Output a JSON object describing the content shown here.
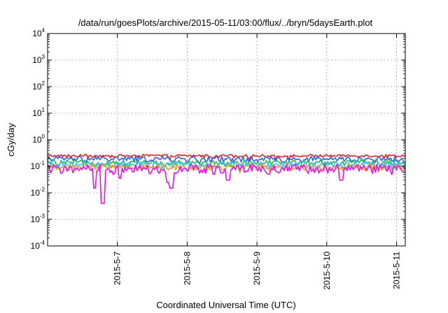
{
  "chart_data": {
    "type": "line",
    "title": "/data/run/goesPlots/archive/2015-05-11/03:00/flux/../bryn/5daysEarth.plot",
    "xlabel": "Coordinated Universal Time (UTC)",
    "ylabel": "cGy/day",
    "yscale": "log",
    "ylim": [
      0.0001,
      10000
    ],
    "xlim": [
      "2015-05-06T00:00",
      "2015-05-11T03:00"
    ],
    "x_ticks": [
      "2015-5-7",
      "2015-5-8",
      "2015-5-9",
      "2015-5-10",
      "2015-5-11"
    ],
    "y_ticks": [
      {
        "base": "10",
        "exp": "-4"
      },
      {
        "base": "10",
        "exp": "-3"
      },
      {
        "base": "10",
        "exp": "-2"
      },
      {
        "base": "10",
        "exp": "-1"
      },
      {
        "base": "10",
        "exp": "0"
      },
      {
        "base": "10",
        "exp": "1"
      },
      {
        "base": "10",
        "exp": "2"
      },
      {
        "base": "10",
        "exp": "3"
      },
      {
        "base": "10",
        "exp": "4"
      }
    ],
    "grid": true,
    "legend": "none",
    "series": [
      {
        "color": "#e6222a",
        "base": 0.25,
        "spread": 0.018,
        "dips": []
      },
      {
        "color": "#3060e8",
        "base": 0.19,
        "spread": 0.03,
        "dips": []
      },
      {
        "color": "#20b868",
        "base": 0.14,
        "spread": 0.02,
        "dips": []
      },
      {
        "color": "#35c4e8",
        "base": 0.115,
        "spread": 0.02,
        "dips": []
      },
      {
        "color": "#e8a020",
        "base": 0.095,
        "spread": 0.015,
        "dips": []
      },
      {
        "color": "#ee10ee",
        "base": 0.085,
        "spread": 0.02,
        "dips": [
          {
            "x": "2015-05-06T16:00",
            "y": 0.015
          },
          {
            "x": "2015-05-06T19:00",
            "y": 0.004
          },
          {
            "x": "2015-05-07T01:00",
            "y": 0.035
          },
          {
            "x": "2015-05-07T17:30",
            "y": 0.025
          },
          {
            "x": "2015-05-07T18:30",
            "y": 0.015
          },
          {
            "x": "2015-05-08T09:00",
            "y": 0.05
          },
          {
            "x": "2015-05-08T14:00",
            "y": 0.03
          },
          {
            "x": "2015-05-09T04:00",
            "y": 0.05
          },
          {
            "x": "2015-05-10T05:00",
            "y": 0.03
          },
          {
            "x": "2015-05-11T03:00",
            "y": 0.06
          }
        ]
      }
    ]
  }
}
